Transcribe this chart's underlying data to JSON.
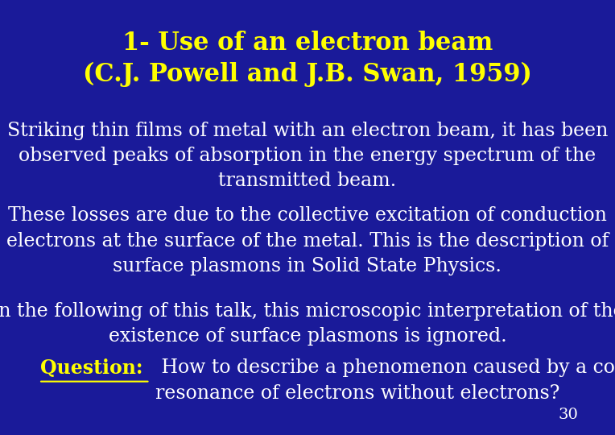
{
  "bg_color": "#1a1a99",
  "title_line1": "1- Use of an electron beam",
  "title_line2": "(C.J. Powell and J.B. Swan, 1959)",
  "title_color": "#ffff00",
  "title_fontsize": 22,
  "body_color": "#ffffff",
  "body_fontsize": 17,
  "question_label_color": "#ffff00",
  "question_body_color": "#ffffff",
  "page_number": "30",
  "page_color": "#ffffff",
  "para1": "Striking thin films of metal with an electron beam, it has been\nobserved peaks of absorption in the energy spectrum of the\ntransmitted beam.",
  "para2": "These losses are due to the collective excitation of conduction\nelectrons at the surface of the metal. This is the description of\nsurface plasmons in Solid State Physics.",
  "para3": "In the following of this talk, this microscopic interpretation of the\nexistence of surface plasmons is ignored.",
  "question_label": "Question:",
  "question_body": " How to describe a phenomenon caused by a collective\nresonance of electrons without electrons?"
}
